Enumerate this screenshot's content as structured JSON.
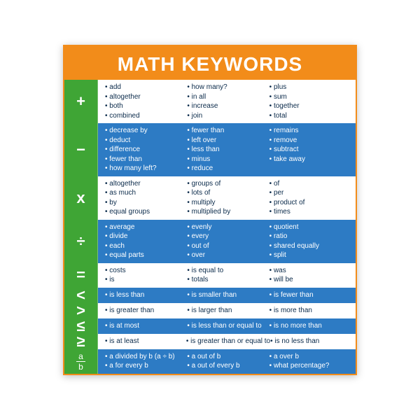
{
  "title": "MATH KEYWORDS",
  "colors": {
    "header_bg": "#f28c1a",
    "header_border": "#f28c1a",
    "symbol_col_bg": "#3fa535",
    "row_blue_bg": "#2d7bc4",
    "row_white_bg": "#ffffff",
    "white_text": "#ffffff",
    "dark_text": "#0a2a4a"
  },
  "rows": [
    {
      "symbol": "+",
      "symbol_type": "text",
      "bg": "white",
      "cols": [
        [
          "add",
          "altogether",
          "both",
          "combined"
        ],
        [
          "how many?",
          "in all",
          "increase",
          "join"
        ],
        [
          "plus",
          "sum",
          "together",
          "total"
        ]
      ]
    },
    {
      "symbol": "−",
      "symbol_type": "text",
      "bg": "blue",
      "cols": [
        [
          "decrease by",
          "deduct",
          "difference",
          "fewer than",
          "how many left?"
        ],
        [
          "fewer than",
          "left over",
          "less than",
          "minus",
          "reduce"
        ],
        [
          "remains",
          "remove",
          "subtract",
          "take away"
        ]
      ]
    },
    {
      "symbol": "x",
      "symbol_type": "text",
      "bg": "white",
      "cols": [
        [
          "altogether",
          "as much",
          "by",
          "equal groups"
        ],
        [
          "groups of",
          "lots of",
          "multiply",
          "multiplied by"
        ],
        [
          "of",
          "per",
          "product of",
          "times"
        ]
      ]
    },
    {
      "symbol": "÷",
      "symbol_type": "text",
      "bg": "blue",
      "cols": [
        [
          "average",
          "divide",
          "each",
          "equal parts"
        ],
        [
          "evenly",
          "every",
          "out of",
          "over"
        ],
        [
          "quotient",
          "ratio",
          "shared equally",
          "split"
        ]
      ]
    },
    {
      "symbol": "=",
      "symbol_type": "text",
      "bg": "white",
      "cols": [
        [
          "costs",
          "is"
        ],
        [
          "is equal to",
          "totals"
        ],
        [
          "was",
          "will be"
        ]
      ]
    },
    {
      "symbol": "<",
      "symbol_type": "text",
      "bg": "blue",
      "cols": [
        [
          "is less than"
        ],
        [
          "is smaller than"
        ],
        [
          "is fewer than"
        ]
      ]
    },
    {
      "symbol": ">",
      "symbol_type": "text",
      "bg": "white",
      "cols": [
        [
          "is greater than"
        ],
        [
          "is larger than"
        ],
        [
          "is more than"
        ]
      ]
    },
    {
      "symbol": "≤",
      "symbol_type": "text",
      "bg": "blue",
      "cols": [
        [
          "is at most"
        ],
        [
          "is less than or equal to"
        ],
        [
          "is no more than"
        ]
      ]
    },
    {
      "symbol": "≥",
      "symbol_type": "text",
      "bg": "white",
      "cols": [
        [
          "is at least"
        ],
        [
          "is greater than or equal to"
        ],
        [
          "is no less than"
        ]
      ]
    },
    {
      "symbol": "a/b",
      "symbol_type": "fraction",
      "frac_top": "a",
      "frac_bot": "b",
      "bg": "blue",
      "cols": [
        [
          "a divided by b (a ÷ b)",
          "a for every b"
        ],
        [
          "a out of b",
          "a out of every b"
        ],
        [
          "a over b",
          "what percentage?"
        ]
      ]
    }
  ]
}
